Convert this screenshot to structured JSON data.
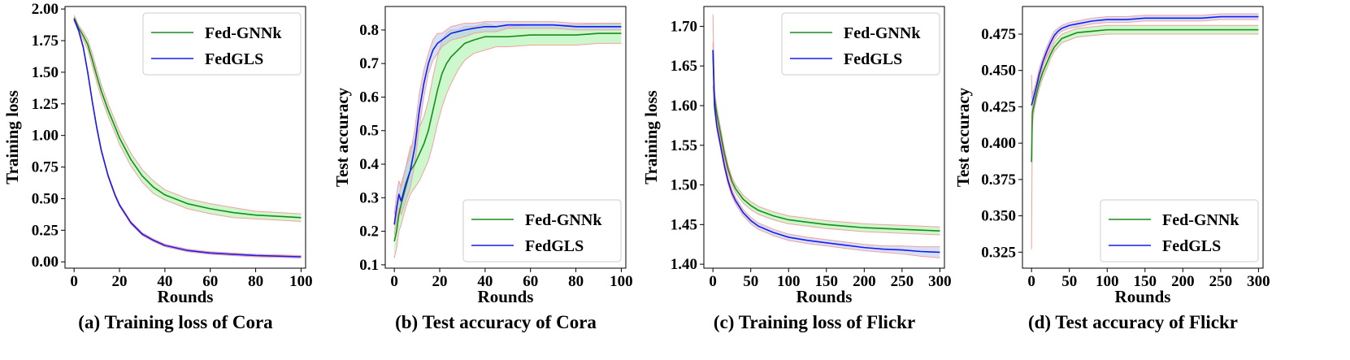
{
  "colors": {
    "fed_gnnk": "#1a8c1a",
    "fed_gnnk_band": "#90ee90",
    "fedgls": "#1a1aee",
    "fedgls_band": "#b7c9ec",
    "band_edge": "#f4a0a0"
  },
  "chart_data": [
    {
      "type": "line",
      "id": "a",
      "caption": "(a) Training loss of Cora",
      "xlabel": "Rounds",
      "ylabel": "Training loss",
      "xlim": [
        -4,
        102
      ],
      "ylim": [
        -0.05,
        2.02
      ],
      "xticks": [
        0,
        20,
        40,
        60,
        80,
        100
      ],
      "yticks": [
        0.0,
        0.25,
        0.5,
        0.75,
        1.0,
        1.25,
        1.5,
        1.75,
        2.0
      ],
      "ytick_decimals": 2,
      "legend": "top-right",
      "series": [
        {
          "name": "Fed-GNNk",
          "x": [
            0,
            2,
            4,
            6,
            8,
            10,
            12,
            15,
            18,
            20,
            25,
            30,
            35,
            40,
            50,
            60,
            70,
            80,
            90,
            100
          ],
          "values": [
            1.93,
            1.85,
            1.79,
            1.72,
            1.6,
            1.47,
            1.35,
            1.2,
            1.07,
            0.98,
            0.81,
            0.68,
            0.59,
            0.53,
            0.46,
            0.42,
            0.39,
            0.37,
            0.36,
            0.35
          ],
          "band": [
            0.02,
            0.02,
            0.03,
            0.04,
            0.05,
            0.05,
            0.05,
            0.05,
            0.05,
            0.05,
            0.05,
            0.05,
            0.05,
            0.04,
            0.04,
            0.04,
            0.04,
            0.03,
            0.03,
            0.03
          ]
        },
        {
          "name": "FedGLS",
          "x": [
            0,
            2,
            4,
            6,
            8,
            10,
            12,
            15,
            18,
            20,
            25,
            30,
            35,
            40,
            50,
            60,
            70,
            80,
            90,
            100
          ],
          "values": [
            1.92,
            1.83,
            1.7,
            1.5,
            1.27,
            1.06,
            0.88,
            0.68,
            0.53,
            0.45,
            0.31,
            0.22,
            0.17,
            0.13,
            0.09,
            0.07,
            0.06,
            0.05,
            0.045,
            0.04
          ],
          "band": [
            0.01,
            0.01,
            0.01,
            0.01,
            0.01,
            0.01,
            0.01,
            0.01,
            0.01,
            0.01,
            0.01,
            0.01,
            0.01,
            0.01,
            0.01,
            0.01,
            0.01,
            0.01,
            0.01,
            0.01
          ]
        }
      ]
    },
    {
      "type": "line",
      "id": "b",
      "caption": "(b) Test accuracy of Cora",
      "xlabel": "Rounds",
      "ylabel": "Test accuracy",
      "xlim": [
        -4,
        102
      ],
      "ylim": [
        0.09,
        0.87
      ],
      "xticks": [
        0,
        20,
        40,
        60,
        80,
        100
      ],
      "yticks": [
        0.1,
        0.2,
        0.3,
        0.4,
        0.5,
        0.6,
        0.7,
        0.8
      ],
      "ytick_decimals": 1,
      "legend": "bottom-right",
      "series": [
        {
          "name": "Fed-GNNk",
          "x": [
            0,
            1,
            2,
            3,
            5,
            7,
            9,
            11,
            13,
            15,
            17,
            19,
            21,
            23,
            25,
            28,
            31,
            35,
            40,
            45,
            50,
            60,
            70,
            80,
            90,
            100
          ],
          "values": [
            0.17,
            0.2,
            0.25,
            0.28,
            0.33,
            0.38,
            0.4,
            0.43,
            0.46,
            0.5,
            0.56,
            0.62,
            0.67,
            0.7,
            0.72,
            0.74,
            0.76,
            0.77,
            0.78,
            0.78,
            0.78,
            0.785,
            0.785,
            0.785,
            0.79,
            0.79
          ],
          "band": [
            0.05,
            0.05,
            0.05,
            0.06,
            0.06,
            0.07,
            0.07,
            0.08,
            0.08,
            0.09,
            0.1,
            0.1,
            0.1,
            0.09,
            0.08,
            0.06,
            0.05,
            0.04,
            0.04,
            0.03,
            0.03,
            0.03,
            0.03,
            0.03,
            0.03,
            0.03
          ]
        },
        {
          "name": "FedGLS",
          "x": [
            0,
            1,
            2,
            3,
            5,
            7,
            9,
            11,
            13,
            15,
            17,
            19,
            21,
            23,
            25,
            28,
            31,
            35,
            40,
            45,
            50,
            60,
            70,
            80,
            90,
            100
          ],
          "values": [
            0.22,
            0.27,
            0.31,
            0.29,
            0.34,
            0.38,
            0.45,
            0.56,
            0.64,
            0.7,
            0.74,
            0.76,
            0.77,
            0.78,
            0.79,
            0.795,
            0.8,
            0.805,
            0.81,
            0.81,
            0.815,
            0.815,
            0.815,
            0.81,
            0.81,
            0.81
          ],
          "band": [
            0.03,
            0.04,
            0.04,
            0.04,
            0.05,
            0.05,
            0.05,
            0.05,
            0.04,
            0.03,
            0.03,
            0.03,
            0.02,
            0.02,
            0.02,
            0.02,
            0.02,
            0.015,
            0.015,
            0.015,
            0.01,
            0.01,
            0.01,
            0.01,
            0.01,
            0.01
          ]
        }
      ]
    },
    {
      "type": "line",
      "id": "c",
      "caption": "(c) Training loss of Flickr",
      "xlabel": "Rounds",
      "ylabel": "Training loss",
      "xlim": [
        -12,
        306
      ],
      "ylim": [
        1.395,
        1.725
      ],
      "xticks": [
        0,
        50,
        100,
        150,
        200,
        250,
        300
      ],
      "yticks": [
        1.4,
        1.45,
        1.5,
        1.55,
        1.6,
        1.65,
        1.7
      ],
      "ytick_decimals": 2,
      "legend": "top-right",
      "series": [
        {
          "name": "Fed-GNNk",
          "x": [
            0,
            2,
            5,
            10,
            15,
            20,
            25,
            30,
            40,
            50,
            60,
            80,
            100,
            125,
            150,
            175,
            200,
            225,
            250,
            275,
            300
          ],
          "values": [
            1.67,
            1.61,
            1.59,
            1.565,
            1.54,
            1.52,
            1.505,
            1.495,
            1.482,
            1.474,
            1.468,
            1.461,
            1.456,
            1.453,
            1.45,
            1.448,
            1.446,
            1.445,
            1.444,
            1.443,
            1.442
          ],
          "band": [
            0.045,
            0.01,
            0.008,
            0.007,
            0.006,
            0.005,
            0.005,
            0.005,
            0.005,
            0.005,
            0.005,
            0.005,
            0.005,
            0.005,
            0.005,
            0.005,
            0.005,
            0.005,
            0.005,
            0.005,
            0.005
          ]
        },
        {
          "name": "FedGLS",
          "x": [
            0,
            2,
            5,
            10,
            15,
            20,
            25,
            30,
            40,
            50,
            60,
            80,
            100,
            125,
            150,
            175,
            200,
            225,
            250,
            275,
            300
          ],
          "values": [
            1.67,
            1.6,
            1.575,
            1.55,
            1.525,
            1.505,
            1.49,
            1.48,
            1.465,
            1.455,
            1.448,
            1.44,
            1.434,
            1.43,
            1.427,
            1.424,
            1.421,
            1.419,
            1.418,
            1.416,
            1.415
          ],
          "band": [
            0.01,
            0.005,
            0.004,
            0.004,
            0.004,
            0.004,
            0.004,
            0.004,
            0.004,
            0.004,
            0.004,
            0.004,
            0.004,
            0.004,
            0.004,
            0.004,
            0.004,
            0.004,
            0.005,
            0.006,
            0.007
          ]
        }
      ]
    },
    {
      "type": "line",
      "id": "d",
      "caption": "(d) Test accuracy of Flickr",
      "xlabel": "Rounds",
      "ylabel": "Test accuracy",
      "xlim": [
        -12,
        306
      ],
      "ylim": [
        0.314,
        0.494
      ],
      "xticks": [
        0,
        50,
        100,
        150,
        200,
        250,
        300
      ],
      "yticks": [
        0.325,
        0.35,
        0.375,
        0.4,
        0.425,
        0.45,
        0.475
      ],
      "ytick_decimals": 3,
      "legend": "bottom-right",
      "series": [
        {
          "name": "Fed-GNNk",
          "x": [
            0,
            1,
            2,
            4,
            7,
            10,
            15,
            20,
            25,
            30,
            35,
            40,
            50,
            60,
            80,
            100,
            125,
            150,
            175,
            200,
            225,
            250,
            275,
            300
          ],
          "values": [
            0.387,
            0.42,
            0.423,
            0.428,
            0.435,
            0.441,
            0.449,
            0.455,
            0.461,
            0.466,
            0.469,
            0.472,
            0.474,
            0.476,
            0.477,
            0.478,
            0.478,
            0.478,
            0.478,
            0.478,
            0.478,
            0.478,
            0.478,
            0.478
          ],
          "band": [
            0.06,
            0.01,
            0.006,
            0.004,
            0.004,
            0.004,
            0.004,
            0.004,
            0.003,
            0.003,
            0.003,
            0.003,
            0.003,
            0.003,
            0.003,
            0.003,
            0.003,
            0.003,
            0.003,
            0.003,
            0.003,
            0.003,
            0.003,
            0.003
          ]
        },
        {
          "name": "FedGLS",
          "x": [
            0,
            1,
            2,
            4,
            7,
            10,
            15,
            20,
            25,
            30,
            35,
            40,
            50,
            60,
            80,
            100,
            125,
            150,
            175,
            200,
            225,
            250,
            275,
            300
          ],
          "values": [
            0.426,
            0.428,
            0.43,
            0.434,
            0.44,
            0.447,
            0.456,
            0.463,
            0.469,
            0.474,
            0.477,
            0.479,
            0.481,
            0.482,
            0.484,
            0.485,
            0.485,
            0.486,
            0.486,
            0.486,
            0.486,
            0.487,
            0.487,
            0.487
          ],
          "band": [
            0.005,
            0.005,
            0.005,
            0.004,
            0.004,
            0.004,
            0.003,
            0.003,
            0.003,
            0.003,
            0.002,
            0.002,
            0.002,
            0.002,
            0.002,
            0.002,
            0.002,
            0.002,
            0.002,
            0.002,
            0.002,
            0.002,
            0.002,
            0.002
          ]
        }
      ]
    }
  ]
}
